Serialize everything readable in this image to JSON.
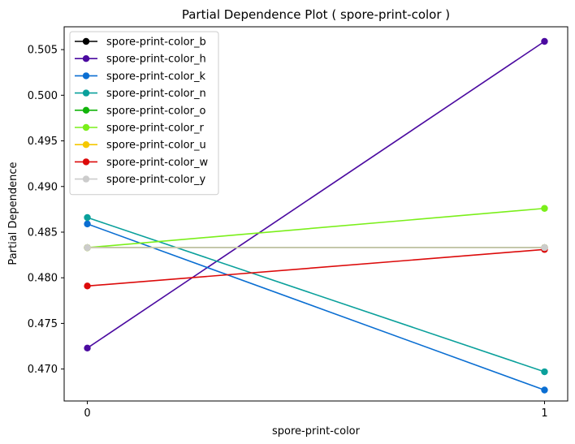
{
  "chart_data": {
    "type": "line",
    "title": "Partial Dependence Plot ( spore-print-color )",
    "xlabel": "spore-print-color",
    "ylabel": "Partial Dependence",
    "x": [
      0,
      1
    ],
    "xticks": [
      "0",
      "1"
    ],
    "ylim": [
      0.4665,
      0.5075
    ],
    "yticks": [
      "0.470",
      "0.475",
      "0.480",
      "0.485",
      "0.490",
      "0.495",
      "0.500",
      "0.505"
    ],
    "grid": false,
    "legend_position": "top-left",
    "series": [
      {
        "name": "spore-print-color_b",
        "color": "#000000",
        "values": [
          0.4833,
          0.4833
        ]
      },
      {
        "name": "spore-print-color_h",
        "color": "#4b0aa0",
        "values": [
          0.4723,
          0.5059
        ]
      },
      {
        "name": "spore-print-color_k",
        "color": "#0a6ed2",
        "values": [
          0.4859,
          0.4677
        ]
      },
      {
        "name": "spore-print-color_n",
        "color": "#0aa09b",
        "values": [
          0.4866,
          0.4697
        ]
      },
      {
        "name": "spore-print-color_o",
        "color": "#12b40a",
        "values": [
          0.4833,
          0.4833
        ]
      },
      {
        "name": "spore-print-color_r",
        "color": "#7aef1a",
        "values": [
          0.4833,
          0.4876
        ]
      },
      {
        "name": "spore-print-color_u",
        "color": "#f5c800",
        "values": [
          0.4833,
          0.4833
        ]
      },
      {
        "name": "spore-print-color_w",
        "color": "#dc0a0a",
        "values": [
          0.4791,
          0.4831
        ]
      },
      {
        "name": "spore-print-color_y",
        "color": "#cccccc",
        "values": [
          0.4833,
          0.4833
        ]
      }
    ]
  }
}
